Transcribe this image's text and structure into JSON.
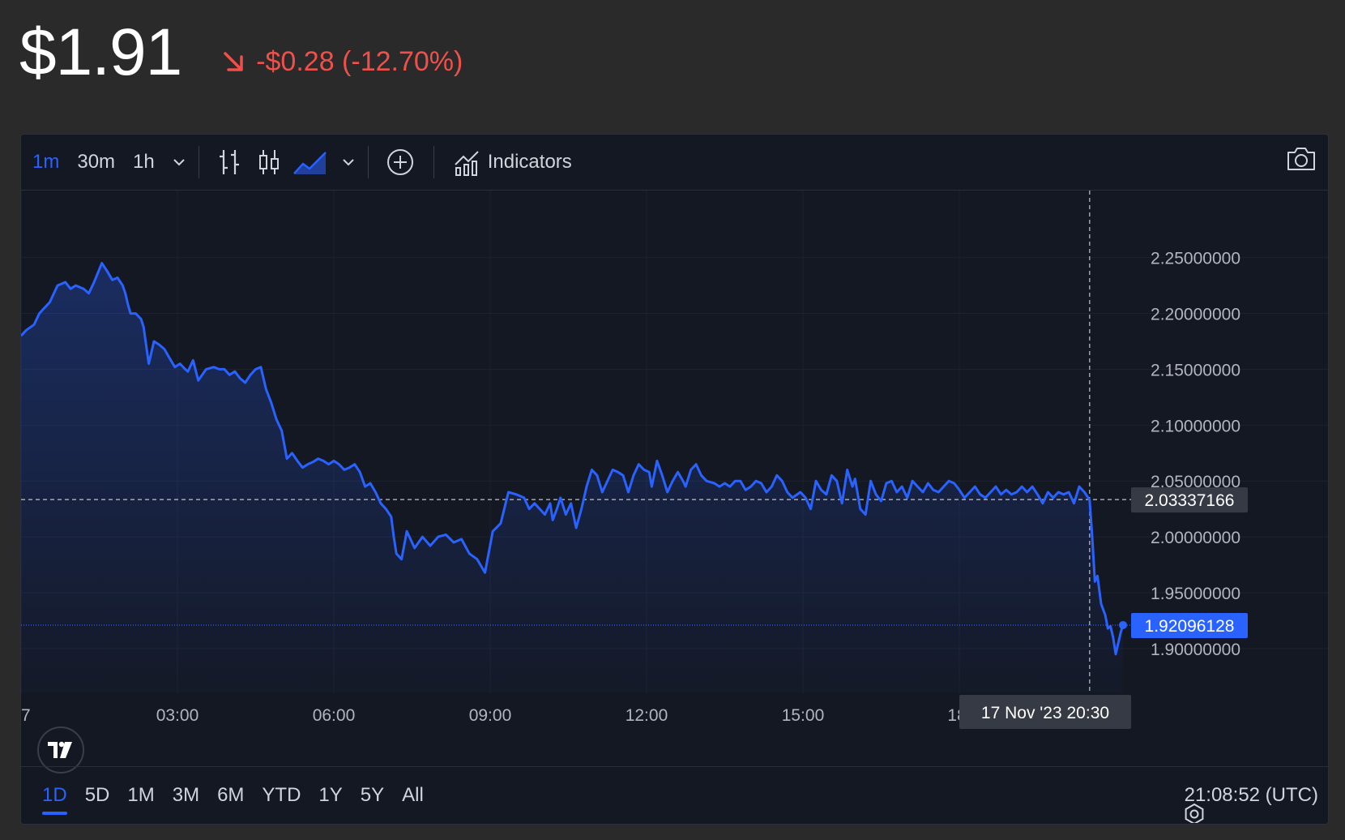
{
  "header": {
    "price": "$1.91",
    "change": "-$0.28 (-12.70%)",
    "change_direction": "down",
    "down_color": "#f0504a"
  },
  "toolbar": {
    "intervals": [
      "1m",
      "30m",
      "1h"
    ],
    "active_interval": "1m",
    "indicators_label": "Indicators",
    "icons": [
      "chevron-down-icon",
      "bar-chart-icon",
      "candles-icon",
      "area-chart-icon",
      "chevron-down-icon",
      "plus-circle-icon",
      "indicators-icon",
      "camera-icon"
    ]
  },
  "chart_data": {
    "type": "area",
    "line_color": "#2962ff",
    "x_tick_labels": [
      "7",
      "03:00",
      "06:00",
      "09:00",
      "12:00",
      "15:00",
      "18:"
    ],
    "y_tick_labels": [
      "2.25000000",
      "2.20000000",
      "2.15000000",
      "2.10000000",
      "2.05000000",
      "2.00000000",
      "1.95000000",
      "1.90000000"
    ],
    "y_ticks": [
      2.25,
      2.2,
      2.15,
      2.1,
      2.05,
      2.0,
      1.95,
      1.9
    ],
    "x_range_hours": [
      0,
      21.14
    ],
    "y_range": [
      1.86,
      2.31
    ],
    "crosshair": {
      "value": "2.03337166",
      "time_label": "17 Nov '23   20:30",
      "hour": 20.5
    },
    "last_price": {
      "value": "1.92096128",
      "numeric": 1.92096128
    },
    "series": [
      {
        "x_hours": [
          0.0,
          0.1,
          0.25,
          0.35,
          0.45,
          0.55,
          0.7,
          0.85,
          0.95,
          1.05,
          1.2,
          1.3,
          1.4,
          1.55,
          1.65,
          1.75,
          1.85,
          1.95,
          2.0,
          2.05,
          2.1,
          2.2,
          2.3,
          2.35,
          2.45,
          2.55,
          2.65,
          2.75,
          2.85,
          2.95,
          3.05,
          3.15,
          3.2,
          3.3,
          3.4,
          3.55,
          3.7,
          3.8,
          3.9,
          4.0,
          4.1,
          4.2,
          4.3,
          4.4,
          4.5,
          4.6,
          4.7,
          4.8,
          4.9,
          5.0,
          5.1,
          5.2,
          5.3,
          5.4,
          5.5,
          5.6,
          5.7,
          5.8,
          5.9,
          6.0,
          6.1,
          6.2,
          6.3,
          6.4,
          6.5,
          6.6,
          6.7,
          6.8,
          6.9,
          7.0,
          7.1,
          7.15,
          7.2,
          7.3,
          7.4,
          7.55,
          7.7,
          7.85,
          8.0,
          8.15,
          8.3,
          8.45,
          8.6,
          8.75,
          8.9,
          9.05,
          9.2,
          9.35,
          9.5,
          9.65,
          9.75,
          9.85,
          9.95,
          10.05,
          10.15,
          10.2,
          10.28,
          10.35,
          10.45,
          10.55,
          10.65,
          10.75,
          10.85,
          10.95,
          11.05,
          11.15,
          11.25,
          11.35,
          11.45,
          11.55,
          11.65,
          11.75,
          11.85,
          11.95,
          12.05,
          12.1,
          12.2,
          12.3,
          12.4,
          12.5,
          12.6,
          12.7,
          12.75,
          12.85,
          12.95,
          13.05,
          13.15,
          13.3,
          13.4,
          13.5,
          13.6,
          13.7,
          13.8,
          13.9,
          14.0,
          14.1,
          14.2,
          14.3,
          14.4,
          14.5,
          14.6,
          14.7,
          14.8,
          14.95,
          15.05,
          15.15,
          15.25,
          15.35,
          15.45,
          15.55,
          15.65,
          15.75,
          15.85,
          15.95,
          16.0,
          16.1,
          16.2,
          16.3,
          16.4,
          16.5,
          16.6,
          16.7,
          16.8,
          16.9,
          17.0,
          17.1,
          17.2,
          17.3,
          17.4,
          17.5,
          17.6,
          17.7,
          17.8,
          17.9,
          18.0,
          18.1,
          18.2,
          18.3,
          18.4,
          18.5,
          18.6,
          18.7,
          18.8,
          18.9,
          19.0,
          19.1,
          19.2,
          19.3,
          19.4,
          19.5,
          19.6,
          19.7,
          19.8,
          19.9,
          20.0,
          20.1,
          20.2,
          20.3,
          20.4,
          20.5,
          20.55,
          20.6,
          20.65,
          20.72,
          20.8,
          20.85,
          20.9,
          20.95,
          21.0,
          21.05,
          21.1,
          21.14
        ],
        "values": [
          2.18,
          2.185,
          2.19,
          2.2,
          2.205,
          2.21,
          2.225,
          2.228,
          2.222,
          2.225,
          2.222,
          2.218,
          2.228,
          2.245,
          2.238,
          2.23,
          2.232,
          2.225,
          2.218,
          2.208,
          2.2,
          2.2,
          2.195,
          2.188,
          2.155,
          2.175,
          2.172,
          2.168,
          2.16,
          2.152,
          2.155,
          2.15,
          2.148,
          2.158,
          2.14,
          2.15,
          2.152,
          2.15,
          2.15,
          2.145,
          2.148,
          2.142,
          2.138,
          2.145,
          2.15,
          2.152,
          2.132,
          2.12,
          2.105,
          2.095,
          2.07,
          2.075,
          2.068,
          2.062,
          2.065,
          2.067,
          2.07,
          2.068,
          2.065,
          2.068,
          2.065,
          2.06,
          2.062,
          2.065,
          2.058,
          2.045,
          2.048,
          2.04,
          2.03,
          2.025,
          2.018,
          2.0,
          1.985,
          1.98,
          2.005,
          1.99,
          2.0,
          1.992,
          2.0,
          2.002,
          1.995,
          1.998,
          1.985,
          1.98,
          1.968,
          2.005,
          2.012,
          2.04,
          2.038,
          2.035,
          2.025,
          2.03,
          2.025,
          2.02,
          2.03,
          2.015,
          2.025,
          2.035,
          2.02,
          2.03,
          2.008,
          2.025,
          2.045,
          2.06,
          2.055,
          2.04,
          2.05,
          2.06,
          2.058,
          2.055,
          2.04,
          2.055,
          2.065,
          2.06,
          2.058,
          2.045,
          2.068,
          2.055,
          2.04,
          2.05,
          2.058,
          2.05,
          2.045,
          2.06,
          2.065,
          2.055,
          2.05,
          2.048,
          2.045,
          2.048,
          2.045,
          2.05,
          2.05,
          2.042,
          2.045,
          2.05,
          2.048,
          2.04,
          2.045,
          2.055,
          2.05,
          2.04,
          2.035,
          2.04,
          2.035,
          2.025,
          2.05,
          2.042,
          2.038,
          2.055,
          2.05,
          2.03,
          2.06,
          2.045,
          2.052,
          2.025,
          2.02,
          2.05,
          2.038,
          2.032,
          2.048,
          2.05,
          2.04,
          2.045,
          2.035,
          2.05,
          2.045,
          2.04,
          2.048,
          2.042,
          2.04,
          2.045,
          2.05,
          2.048,
          2.042,
          2.035,
          2.04,
          2.045,
          2.038,
          2.035,
          2.04,
          2.045,
          2.038,
          2.042,
          2.038,
          2.04,
          2.045,
          2.04,
          2.045,
          2.038,
          2.03,
          2.04,
          2.035,
          2.04,
          2.038,
          2.04,
          2.03,
          2.045,
          2.04,
          2.033,
          2.0,
          1.96,
          1.965,
          1.94,
          1.93,
          1.918,
          1.92,
          1.91,
          1.895,
          1.905,
          1.915,
          1.921
        ]
      }
    ]
  },
  "range_bar": {
    "ranges": [
      "1D",
      "5D",
      "1M",
      "3M",
      "6M",
      "YTD",
      "1Y",
      "5Y",
      "All"
    ],
    "active_range": "1D",
    "clock": "21:08:52 (UTC)"
  }
}
